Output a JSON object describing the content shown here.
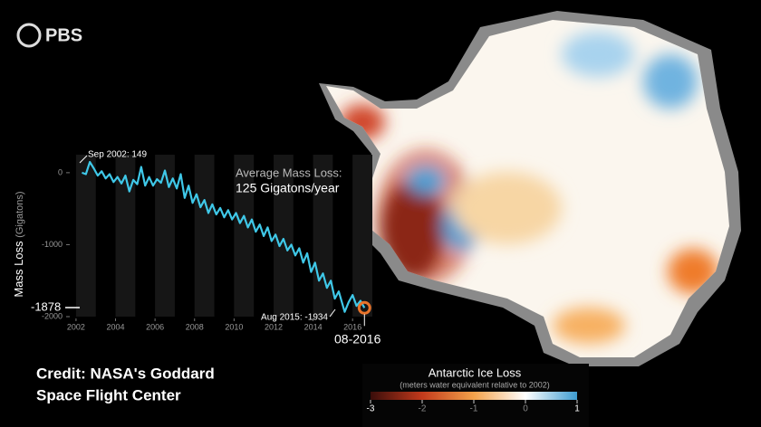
{
  "logo": "PBS",
  "credit": [
    "Credit: NASA's Goddard",
    "Space Flight Center"
  ],
  "colorbar": {
    "title": "Antarctic Ice Loss",
    "subtitle": "(meters water equivalent relative to 2002)",
    "lim": [
      -3,
      1
    ],
    "ticks": [
      -3,
      -2,
      -1,
      0,
      1
    ]
  },
  "chart_data": {
    "type": "line",
    "ylabel": "Mass Loss",
    "ylabel_unit": "(Gigatons)",
    "color": "#3fc8e8",
    "end_marker_color": "#e8732a",
    "xlim": [
      2001.5,
      2017
    ],
    "xticks": [
      2002,
      2004,
      2006,
      2008,
      2010,
      2012,
      2014,
      2016
    ],
    "ylim": [
      -2000,
      250
    ],
    "yticks": [
      0,
      -1000,
      -2000
    ],
    "annotations": [
      "Sep 2002: 149",
      "Aug 2015: -1934",
      "-1878",
      "08-2016",
      "Average Mass Loss:",
      "125 Gigatons/year"
    ],
    "x": [
      2002.3,
      2002.5,
      2002.7,
      2002.9,
      2003.1,
      2003.3,
      2003.5,
      2003.7,
      2003.9,
      2004.1,
      2004.3,
      2004.5,
      2004.7,
      2004.9,
      2005.1,
      2005.3,
      2005.5,
      2005.7,
      2005.9,
      2006.1,
      2006.3,
      2006.5,
      2006.7,
      2006.9,
      2007.1,
      2007.3,
      2007.5,
      2007.7,
      2007.9,
      2008.1,
      2008.3,
      2008.5,
      2008.7,
      2008.9,
      2009.1,
      2009.3,
      2009.5,
      2009.7,
      2009.9,
      2010.1,
      2010.3,
      2010.5,
      2010.7,
      2010.9,
      2011.1,
      2011.3,
      2011.5,
      2011.7,
      2011.9,
      2012.1,
      2012.3,
      2012.5,
      2012.7,
      2012.9,
      2013.1,
      2013.3,
      2013.5,
      2013.7,
      2013.9,
      2014.1,
      2014.3,
      2014.5,
      2014.7,
      2014.9,
      2015.1,
      2015.3,
      2015.6,
      2015.8,
      2016.0,
      2016.2,
      2016.4,
      2016.6
    ],
    "values": [
      0,
      -20,
      149,
      60,
      -40,
      20,
      -80,
      -20,
      -130,
      -60,
      -150,
      -40,
      -260,
      -100,
      -160,
      80,
      -180,
      -60,
      -180,
      -90,
      -140,
      30,
      -200,
      -80,
      -220,
      -20,
      -350,
      -180,
      -420,
      -300,
      -480,
      -380,
      -560,
      -440,
      -580,
      -490,
      -620,
      -520,
      -650,
      -560,
      -700,
      -600,
      -760,
      -650,
      -820,
      -720,
      -880,
      -760,
      -950,
      -860,
      -1020,
      -920,
      -1080,
      -1000,
      -1150,
      -1050,
      -1250,
      -1120,
      -1380,
      -1250,
      -1500,
      -1400,
      -1600,
      -1500,
      -1750,
      -1650,
      -1934,
      -1800,
      -1700,
      -1850,
      -1780,
      -1878
    ]
  }
}
